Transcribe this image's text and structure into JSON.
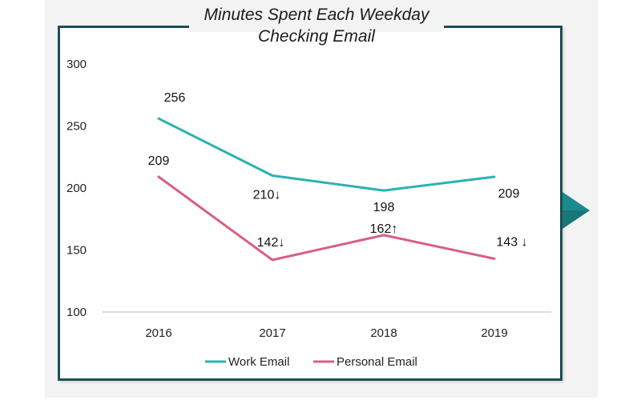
{
  "chart_data": {
    "type": "line",
    "title_lines": [
      "Minutes Spent Each Weekday",
      "Checking Email"
    ],
    "categories": [
      "2016",
      "2017",
      "2018",
      "2019"
    ],
    "ylim": [
      100,
      300
    ],
    "yticks": [
      "300",
      "250",
      "200",
      "150",
      "100"
    ],
    "grid": false,
    "legend_position": "bottom",
    "series": [
      {
        "name": "Work Email",
        "color": "#2ab3b1",
        "values": [
          256,
          210,
          198,
          209
        ],
        "labels": [
          "256",
          "210↓",
          "198",
          "209"
        ]
      },
      {
        "name": "Personal Email",
        "color": "#d9607f",
        "values": [
          209,
          142,
          162,
          143
        ],
        "labels": [
          "209",
          "142↓",
          "162↑",
          "143 ↓"
        ]
      }
    ]
  },
  "colors": {
    "frame": "#1c4f54",
    "arrow": "#1c8a8c",
    "background": "#f3f3f3"
  },
  "icons": {
    "side_arrow": "triangle-right-icon"
  }
}
